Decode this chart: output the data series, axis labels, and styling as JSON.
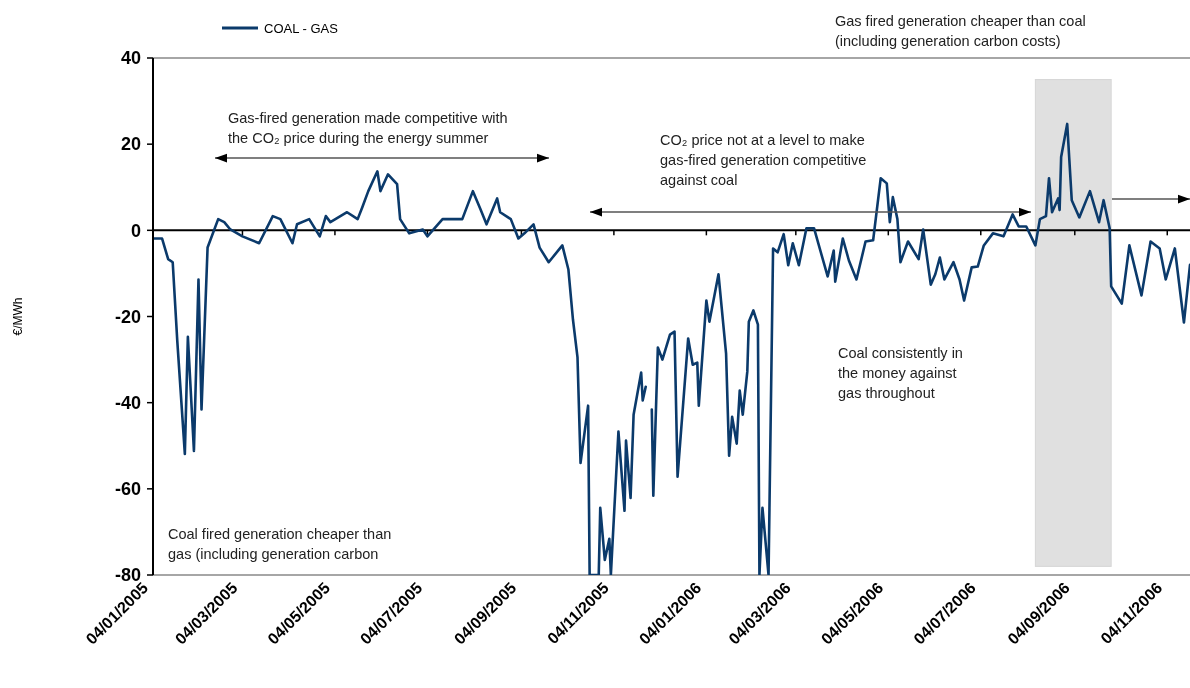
{
  "chart_data": {
    "type": "line",
    "ylabel": "€/MWh",
    "legend": "top",
    "xlim": [
      "2005-01-04",
      "2006-11-19"
    ],
    "xticks": [
      {
        "value": "2005-01-04",
        "label": "04/01/2005"
      },
      {
        "value": "2005-03-04",
        "label": "04/03/2005"
      },
      {
        "value": "2005-05-04",
        "label": "04/05/2005"
      },
      {
        "value": "2005-07-04",
        "label": "04/07/2005"
      },
      {
        "value": "2005-09-04",
        "label": "04/09/2005"
      },
      {
        "value": "2005-11-04",
        "label": "04/11/2005"
      },
      {
        "value": "2006-01-04",
        "label": "04/01/2006"
      },
      {
        "value": "2006-03-04",
        "label": "04/03/2006"
      },
      {
        "value": "2006-05-04",
        "label": "04/05/2006"
      },
      {
        "value": "2006-07-04",
        "label": "04/07/2006"
      },
      {
        "value": "2006-09-04",
        "label": "04/09/2006"
      },
      {
        "value": "2006-11-04",
        "label": "04/11/2006"
      }
    ],
    "ylim": [
      -80,
      40
    ],
    "yticks": [
      -80,
      -60,
      -40,
      -20,
      0,
      20,
      40
    ],
    "grid": false,
    "line_style": "solid",
    "marker": "none",
    "ref_lines": [
      {
        "axis": "y",
        "value": 0,
        "color": "#000000"
      }
    ],
    "bands": [
      {
        "axis": "x",
        "from": "2006-08-09",
        "to": "2006-09-28",
        "color": "#d9d9d9"
      }
    ],
    "annotations": [
      "Gas fired generation cheaper than coal (including generation carbon costs)",
      "Gas-fired generation made competitive with the CO₂ price during the energy summer",
      "CO₂ price not at a level to make gas-fired generation competitive against coal",
      "Coal consistently in the money against gas throughout",
      "Coal fired generation cheaper than gas (including generation carbon"
    ],
    "series": [
      {
        "name": "COAL - GAS",
        "color": "#0b3a6b",
        "x": [
          "2005-01-04",
          "2005-01-10",
          "2005-01-14",
          "2005-01-17",
          "2005-01-20",
          "2005-01-25",
          "2005-01-27",
          "2005-01-31",
          "2005-02-03",
          "2005-02-05",
          "2005-02-09",
          "2005-02-16",
          "2005-02-20",
          "2005-02-24",
          "2005-03-04",
          "2005-03-15",
          "2005-03-24",
          "2005-03-29",
          "2005-04-06",
          "2005-04-09",
          "2005-04-17",
          "2005-04-24",
          "2005-04-28",
          "2005-05-01",
          "2005-05-12",
          "2005-05-19",
          "2005-05-22",
          "2005-05-26",
          "2005-06-01",
          "2005-06-03",
          "2005-06-08",
          "2005-06-14",
          "2005-06-16",
          "2005-06-22",
          "2005-07-01",
          "2005-07-04",
          "2005-07-14",
          "2005-07-27",
          "2005-08-03",
          "2005-08-08",
          "2005-08-12",
          "2005-08-19",
          "2005-08-21",
          "2005-08-28",
          "2005-09-02",
          "2005-09-06",
          "2005-09-12",
          "2005-09-16",
          "2005-09-22",
          "2005-10-01",
          "2005-10-05",
          "2005-10-08",
          "2005-10-11",
          "2005-10-13",
          "2005-10-18",
          "2005-10-19",
          "2005-10-25",
          "2005-10-26",
          "2005-10-29",
          "2005-11-01",
          "2005-11-02",
          "2005-11-07",
          "2005-11-11",
          "2005-11-12",
          "2005-11-15",
          "2005-11-17",
          "2005-11-22",
          "2005-11-23",
          "2005-11-25",
          "2005-11-27",
          "2005-11-29",
          "2005-11-30",
          "2005-12-03",
          "2005-12-06",
          "2005-12-11",
          "2005-12-14",
          "2005-12-16",
          "2005-12-23",
          "2005-12-26",
          "2005-12-29",
          "2005-12-30",
          "2006-01-04",
          "2006-01-06",
          "2006-01-12",
          "2006-01-17",
          "2006-01-19",
          "2006-01-21",
          "2006-01-24",
          "2006-01-26",
          "2006-01-28",
          "2006-01-31",
          "2006-02-01",
          "2006-02-04",
          "2006-02-07",
          "2006-02-08",
          "2006-02-10",
          "2006-02-14",
          "2006-02-17",
          "2006-02-20",
          "2006-02-24",
          "2006-02-27",
          "2006-03-02",
          "2006-03-06",
          "2006-03-11",
          "2006-03-16",
          "2006-03-25",
          "2006-03-29",
          "2006-03-30",
          "2006-04-04",
          "2006-04-08",
          "2006-04-13",
          "2006-04-19",
          "2006-04-24",
          "2006-04-29",
          "2006-05-03",
          "2006-05-05",
          "2006-05-07",
          "2006-05-10",
          "2006-05-12",
          "2006-05-17",
          "2006-05-24",
          "2006-05-27",
          "2006-06-01",
          "2006-06-04",
          "2006-06-07",
          "2006-06-10",
          "2006-06-16",
          "2006-06-20",
          "2006-06-23",
          "2006-06-28",
          "2006-07-02",
          "2006-07-06",
          "2006-07-12",
          "2006-07-19",
          "2006-07-25",
          "2006-07-29",
          "2006-08-03",
          "2006-08-09",
          "2006-08-12",
          "2006-08-16",
          "2006-08-18",
          "2006-08-20",
          "2006-08-24",
          "2006-08-25",
          "2006-08-26",
          "2006-08-30",
          "2006-09-02",
          "2006-09-07",
          "2006-09-14",
          "2006-09-20",
          "2006-09-23",
          "2006-09-27",
          "2006-09-28",
          "2006-10-05",
          "2006-10-10",
          "2006-10-18",
          "2006-10-24",
          "2006-10-30",
          "2006-11-03",
          "2006-11-09",
          "2006-11-15",
          "2006-11-19"
        ],
        "values": [
          -1.9,
          -1.9,
          -6.7,
          -7.4,
          -25.6,
          -51.9,
          -24.7,
          -51.2,
          -11.4,
          -41.6,
          -4.0,
          2.6,
          1.9,
          0.2,
          -1.4,
          -3.0,
          3.3,
          2.6,
          -3.0,
          1.4,
          2.6,
          -1.4,
          3.3,
          1.9,
          4.2,
          2.6,
          5.3,
          9.1,
          13.7,
          9.1,
          13.0,
          10.7,
          2.6,
          -0.7,
          0.2,
          -1.4,
          2.6,
          2.6,
          9.1,
          4.9,
          1.4,
          7.4,
          4.2,
          2.6,
          -1.9,
          -0.7,
          1.4,
          -4.0,
          -7.4,
          -3.5,
          -9.1,
          -20.7,
          -29.5,
          -54.0,
          -40.7,
          -80,
          -80,
          -64.4,
          -76.5,
          -71.6,
          -80,
          -46.7,
          -65.1,
          -48.8,
          -62.1,
          -42.8,
          -33.0,
          -39.5,
          -36.3,
          null,
          -41.6,
          -61.6,
          -27.2,
          -30.0,
          -24.2,
          -23.5,
          -57.2,
          -25.1,
          -31.2,
          -30.7,
          -40.7,
          -16.3,
          -21.2,
          -10.2,
          -28.6,
          -52.3,
          -43.3,
          -49.5,
          -37.2,
          -42.8,
          -32.8,
          -21.2,
          -18.6,
          -21.9,
          -80,
          -64.4,
          -80,
          -4.2,
          -5.1,
          -0.9,
          -8.1,
          -3.0,
          -8.1,
          0.5,
          0.5,
          -10.7,
          -4.7,
          -11.9,
          -1.9,
          -7.0,
          -11.4,
          -2.6,
          -2.3,
          12.1,
          10.9,
          1.9,
          7.7,
          2.6,
          -7.4,
          -2.6,
          -6.7,
          0.2,
          -12.6,
          -10.2,
          -6.3,
          -11.4,
          -7.4,
          -11.4,
          -16.3,
          -8.6,
          -8.4,
          -3.5,
          -0.7,
          -1.4,
          3.7,
          0.9,
          0.9,
          -3.5,
          2.6,
          3.3,
          12.1,
          4.2,
          7.4,
          4.7,
          17.0,
          24.7,
          7.0,
          3.0,
          9.1,
          1.9,
          7.0,
          0.5,
          -13.0,
          -17.0,
          -3.5,
          -15.1,
          -2.6,
          -4.2,
          -11.4,
          -4.2,
          -21.4,
          -8
        ]
      }
    ]
  }
}
